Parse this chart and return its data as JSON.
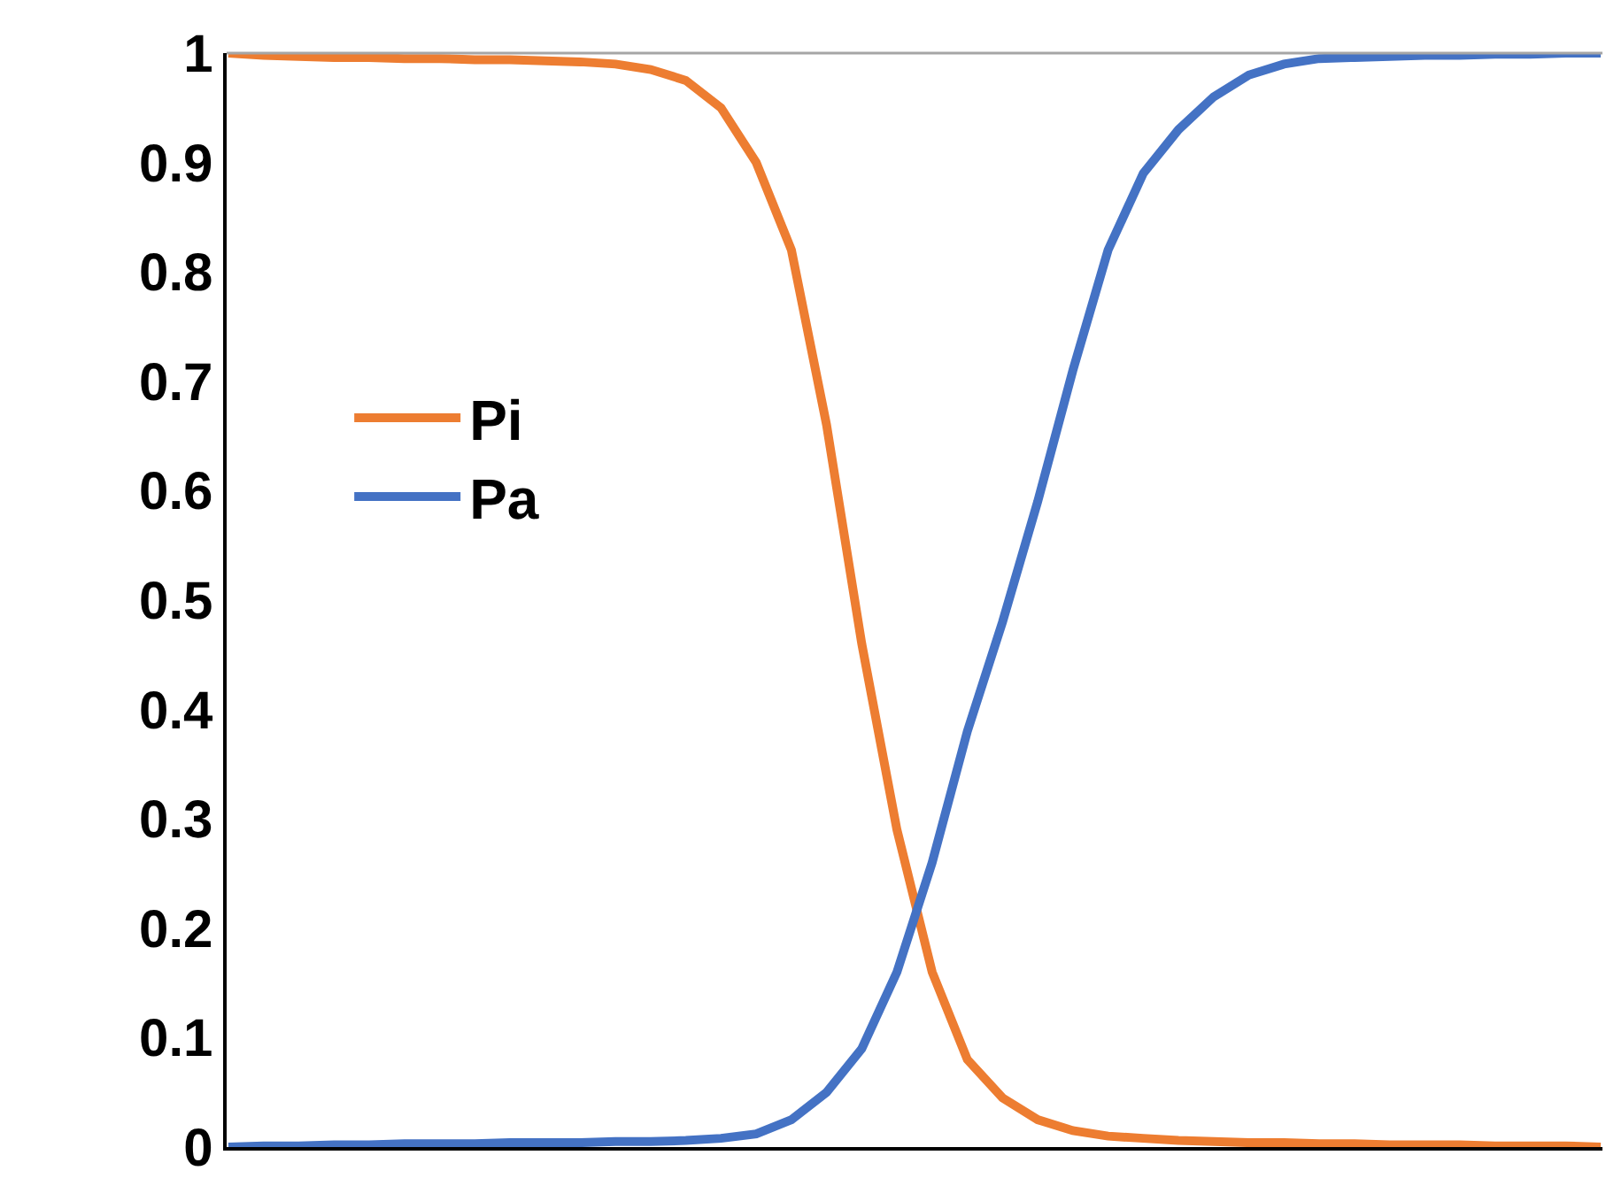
{
  "chart_data": {
    "type": "line",
    "categories": [
      null,
      null,
      null,
      null,
      null,
      null,
      null,
      null,
      null,
      null,
      null,
      null,
      null,
      null,
      null,
      null,
      null,
      null,
      null,
      null,
      null,
      null,
      null,
      null,
      null,
      null,
      null,
      null,
      null,
      null,
      null,
      null,
      null,
      null,
      null,
      null,
      null,
      null,
      null,
      null
    ],
    "series": [
      {
        "name": "Pi",
        "color": "#ed7d31",
        "values": [
          1.0,
          0.998,
          0.997,
          0.996,
          0.996,
          0.995,
          0.995,
          0.994,
          0.994,
          0.993,
          0.992,
          0.99,
          0.985,
          0.975,
          0.95,
          0.9,
          0.82,
          0.66,
          0.46,
          0.29,
          0.16,
          0.08,
          0.045,
          0.025,
          0.015,
          0.01,
          0.008,
          0.006,
          0.005,
          0.004,
          0.004,
          0.003,
          0.003,
          0.002,
          0.002,
          0.002,
          0.001,
          0.001,
          0.001,
          0.0
        ]
      },
      {
        "name": "Pa",
        "color": "#4472c4",
        "values": [
          0.0,
          0.001,
          0.001,
          0.002,
          0.002,
          0.003,
          0.003,
          0.003,
          0.004,
          0.004,
          0.004,
          0.005,
          0.005,
          0.006,
          0.008,
          0.012,
          0.025,
          0.05,
          0.09,
          0.16,
          0.26,
          0.38,
          0.48,
          0.59,
          0.71,
          0.82,
          0.89,
          0.93,
          0.96,
          0.98,
          0.99,
          0.995,
          0.996,
          0.997,
          0.998,
          0.998,
          0.999,
          0.999,
          1.0,
          1.0
        ]
      }
    ],
    "ylim": [
      0,
      1
    ],
    "yticks": [
      0,
      0.1,
      0.2,
      0.3,
      0.4,
      0.5,
      0.6,
      0.7,
      0.8,
      0.9,
      1
    ],
    "grid": false,
    "legend": "center",
    "tick_labels": "y",
    "marker": "none",
    "line_style": "solid"
  }
}
